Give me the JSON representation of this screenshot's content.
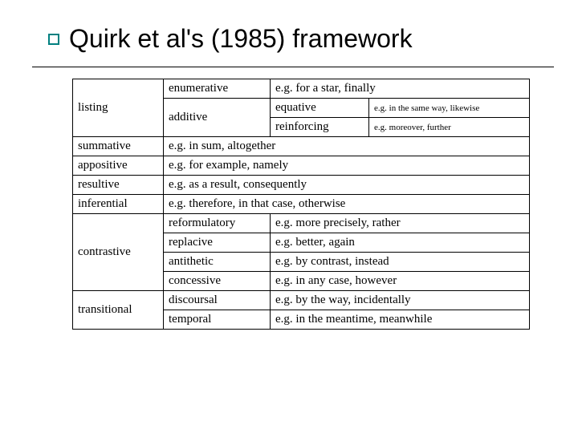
{
  "title": "Quirk et al's (1985) framework",
  "rows": {
    "listing": {
      "label": "listing",
      "enumerative": {
        "label": "enumerative",
        "example": "e.g. for a star, finally"
      },
      "additive": {
        "label": "additive",
        "equative": {
          "label": "equative",
          "example": "e.g. in the same way, likewise"
        },
        "reinforcing": {
          "label": "reinforcing",
          "example": "e.g. moreover, further"
        }
      }
    },
    "summative": {
      "label": "summative",
      "example": "e.g. in sum, altogether"
    },
    "appositive": {
      "label": "appositive",
      "example": "e.g. for example, namely"
    },
    "resultive": {
      "label": "resultive",
      "example": "e.g. as a result, consequently"
    },
    "inferential": {
      "label": "inferential",
      "example": "e.g. therefore, in that case, otherwise"
    },
    "contrastive": {
      "label": "contrastive",
      "reformulatory": {
        "label": "reformulatory",
        "example": "e.g. more precisely, rather"
      },
      "replacive": {
        "label": "replacive",
        "example": "e.g. better, again"
      },
      "antithetic": {
        "label": "antithetic",
        "example": "e.g. by contrast, instead"
      },
      "concessive": {
        "label": "concessive",
        "example": "e.g. in any case, however"
      }
    },
    "transitional": {
      "label": "transitional",
      "discoursal": {
        "label": "discoursal",
        "example": "e.g. by the way, incidentally"
      },
      "temporal": {
        "label": "temporal",
        "example": "e.g. in the meantime, meanwhile"
      }
    }
  }
}
